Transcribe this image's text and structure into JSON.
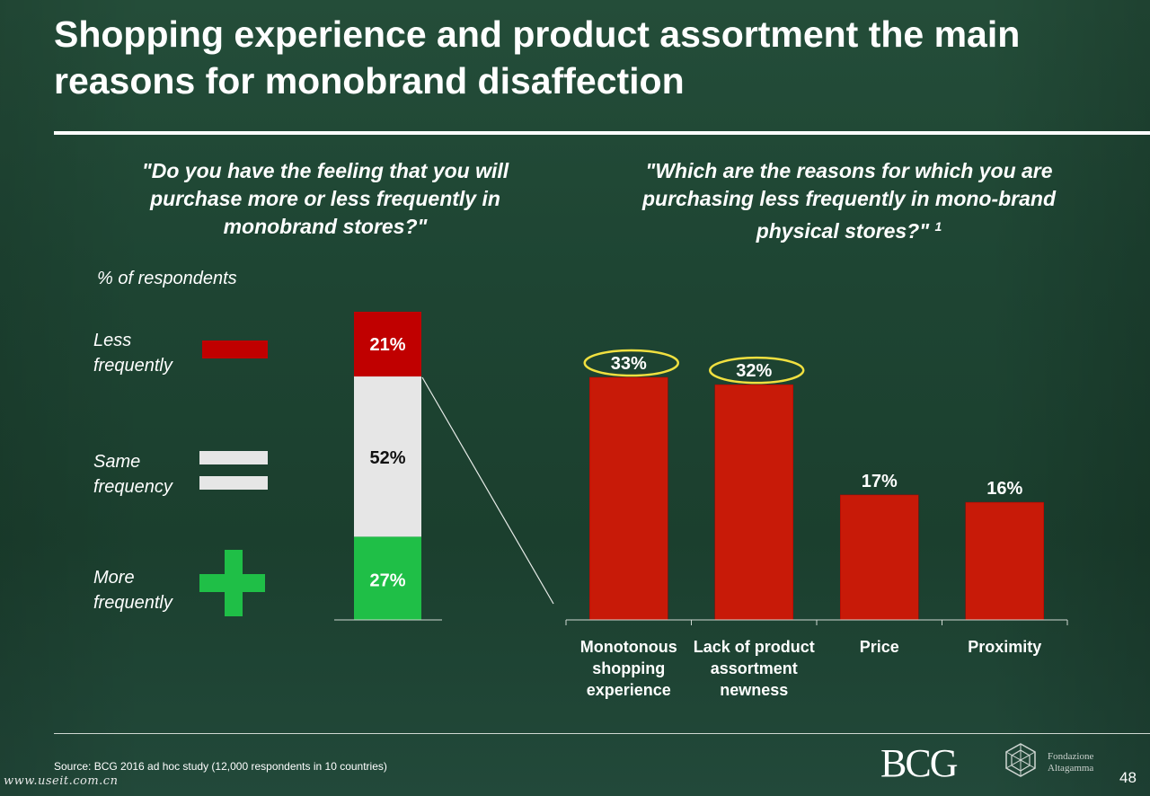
{
  "title": "Shopping experience and product assortment the main reasons for monobrand disaffection",
  "question_left": "\"Do you have the feeling that you will purchase more or less frequently in monobrand stores?\"",
  "question_right": "\"Which are the reasons for which you are purchasing less frequently in mono-brand physical stores?\"",
  "question_right_footnote": "1",
  "respondents_label": "% of respondents",
  "legend": {
    "less": "Less frequently",
    "same": "Same frequency",
    "more": "More frequently"
  },
  "colors": {
    "less": "#c00000",
    "same": "#e6e6e6",
    "more": "#1fbf47",
    "highlight": "#f0e040"
  },
  "chart_data": [
    {
      "type": "bar",
      "stacked": true,
      "categories": [
        ""
      ],
      "series": [
        {
          "name": "More frequently",
          "values": [
            27
          ],
          "label": "27%"
        },
        {
          "name": "Same frequency",
          "values": [
            52
          ],
          "label": "52%"
        },
        {
          "name": "Less frequently",
          "values": [
            21
          ],
          "label": "21%"
        }
      ],
      "ylim": [
        0,
        100
      ]
    },
    {
      "type": "bar",
      "categories": [
        "Monotonous shopping experience",
        "Lack of product assortment newness",
        "Price",
        "Proximity"
      ],
      "values": [
        33,
        32,
        17,
        16
      ],
      "labels": [
        "33%",
        "32%",
        "17%",
        "16%"
      ],
      "highlighted": [
        true,
        true,
        false,
        false
      ],
      "ylim": [
        0,
        40
      ]
    }
  ],
  "source": "Source: BCG 2016 ad hoc study (12,000 respondents in 10 countries)",
  "watermark": "www.useit.com.cn",
  "logo_bcg": "BCG",
  "logo_fondazione": "Fondazione Altagamma",
  "page_number": "48"
}
